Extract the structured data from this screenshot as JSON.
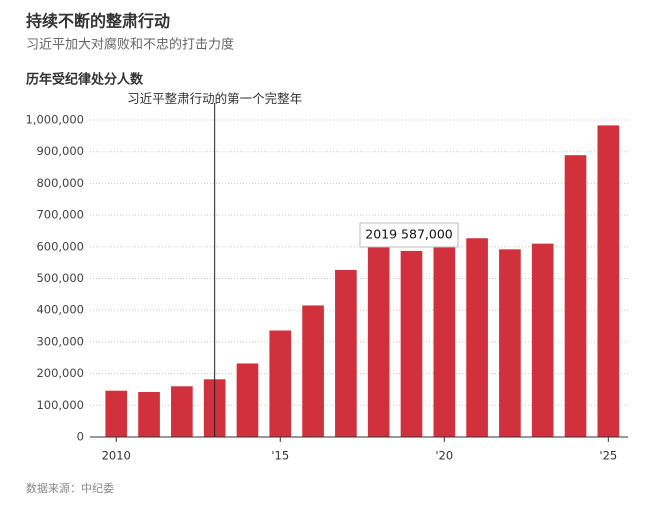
{
  "chart_data": {
    "type": "bar",
    "title": "持续不断的整肃行动",
    "subtitle": "习近平加大对腐败和不忠的打击力度",
    "y_axis_label": "历年受纪律处分人数",
    "annotation": {
      "text": "习近平整肃行动的第一个完整年",
      "x": 2013
    },
    "tooltip": "2019 587,000",
    "source": "数据来源：中纪委",
    "x": [
      2010,
      2011,
      2012,
      2013,
      2014,
      2015,
      2016,
      2017,
      2018,
      2019,
      2020,
      2021,
      2022,
      2023,
      2024,
      2025
    ],
    "values": [
      146000,
      142000,
      160000,
      182000,
      232000,
      336000,
      415000,
      527000,
      621000,
      587000,
      604000,
      627000,
      592000,
      610000,
      889000,
      983000
    ],
    "color": "#d0313d",
    "xlim": [
      2009.2,
      2025.6
    ],
    "xticks": [
      2010,
      {
        "value": 2015,
        "label": "'15"
      },
      {
        "value": 2020,
        "label": "'20"
      },
      {
        "value": 2025,
        "label": "'25"
      }
    ],
    "ylim": [
      0,
      1000000
    ],
    "yticks": [
      0,
      {
        "value": 100000,
        "label": "100,000"
      },
      {
        "value": 200000,
        "label": "200,000"
      },
      {
        "value": 300000,
        "label": "300,000"
      },
      {
        "value": 400000,
        "label": "400,000"
      },
      {
        "value": 500000,
        "label": "500,000"
      },
      {
        "value": 600000,
        "label": "600,000"
      },
      {
        "value": 700000,
        "label": "700,000"
      },
      {
        "value": 800000,
        "label": "800,000"
      },
      {
        "value": 900000,
        "label": "900,000"
      },
      {
        "value": 1000000,
        "label": "1,000,000"
      }
    ],
    "grid": true
  }
}
